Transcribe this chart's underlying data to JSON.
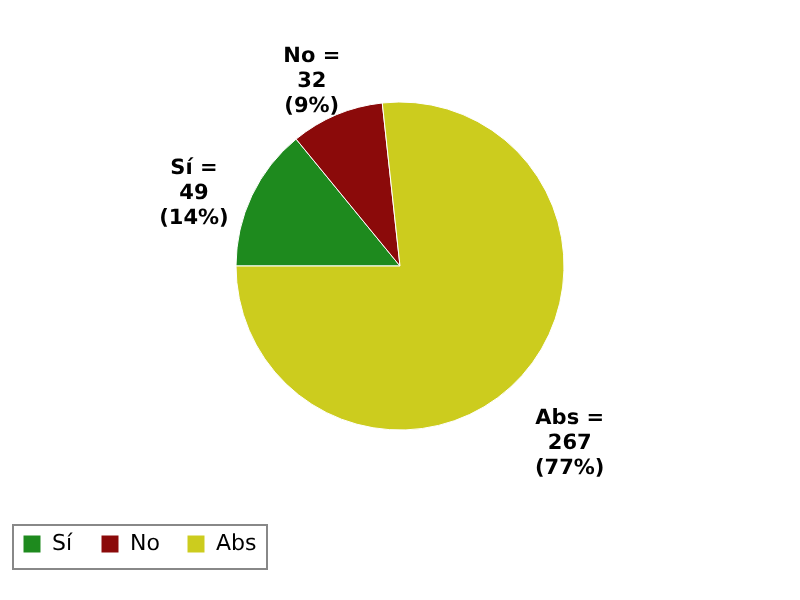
{
  "chart_data": {
    "type": "pie",
    "categories": [
      "Sí",
      "No",
      "Abs"
    ],
    "values": [
      49,
      32,
      267
    ],
    "colors": [
      "#1e8a1e",
      "#8b0a0a",
      "#cccc1e"
    ],
    "value_labels": [
      "Sí =\n49\n(14%)",
      "No =\n32\n(9%)",
      "Abs =\n267\n(77%)"
    ],
    "legend": "bottom"
  }
}
